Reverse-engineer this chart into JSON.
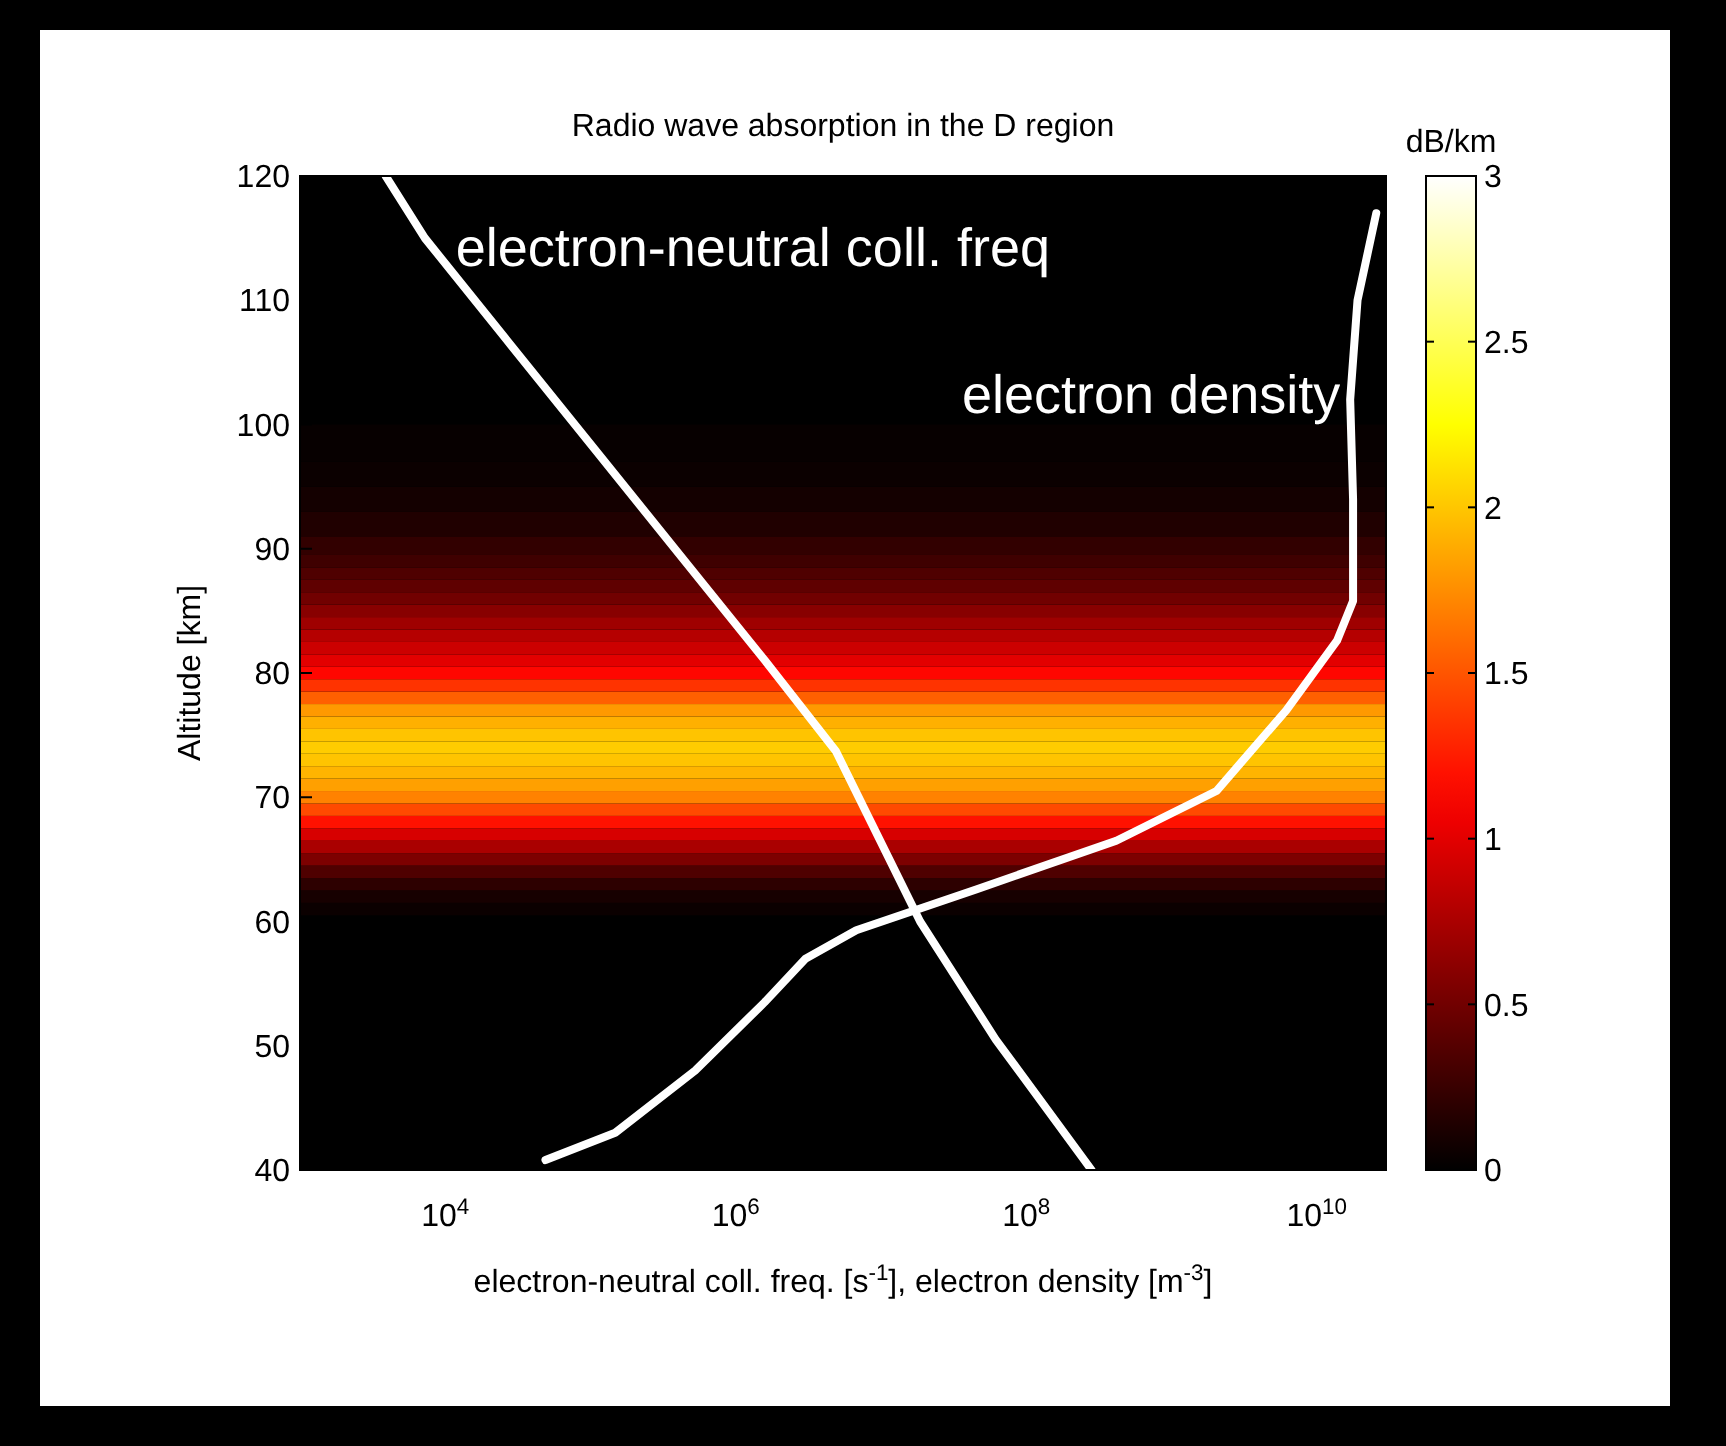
{
  "chart_data": {
    "type": "line",
    "title": "Radio wave absorption in the D region",
    "xlabel": "electron-neutral coll. freq. [s$^{-1}$], electron density [m$^{-3}$]",
    "ylabel": "Altitude [km]",
    "clabel": "dB/km",
    "log": "x",
    "grid": false,
    "legend": false,
    "marker": "none",
    "line_style": "solid",
    "xlim": [
      1000,
      30000000000
    ],
    "xticks": [
      {
        "value": 10000,
        "label": "10$^{4}$"
      },
      {
        "value": 1000000,
        "label": "10$^{6}$"
      },
      {
        "value": 100000000,
        "label": "10$^{8}$"
      },
      {
        "value": 10000000000,
        "label": "10$^{10}$"
      }
    ],
    "ylim": [
      40,
      120
    ],
    "yticks": [
      40,
      50,
      60,
      70,
      80,
      90,
      100,
      110,
      120
    ],
    "clim": [
      0,
      3
    ],
    "cticks": [
      0,
      0.5,
      1,
      1.5,
      2,
      2.5,
      3
    ],
    "bands": [
      {
        "axis": "y",
        "from": 60.5,
        "to": 61.5,
        "color": "#0b0000"
      },
      {
        "axis": "y",
        "from": 61.5,
        "to": 62.5,
        "color": "#170000"
      },
      {
        "axis": "y",
        "from": 62.5,
        "to": 63.5,
        "color": "#2d0000"
      },
      {
        "axis": "y",
        "from": 63.5,
        "to": 64.5,
        "color": "#4f0000"
      },
      {
        "axis": "y",
        "from": 64.5,
        "to": 65.5,
        "color": "#7d0000"
      },
      {
        "axis": "y",
        "from": 65.5,
        "to": 66.5,
        "color": "#aa0000"
      },
      {
        "axis": "y",
        "from": 66.5,
        "to": 67.5,
        "color": "#d70000"
      },
      {
        "axis": "y",
        "from": 67.5,
        "to": 68.5,
        "color": "#ff1100"
      },
      {
        "axis": "y",
        "from": 68.5,
        "to": 69.5,
        "color": "#ff4a00"
      },
      {
        "axis": "y",
        "from": 69.5,
        "to": 70.5,
        "color": "#ff8200"
      },
      {
        "axis": "y",
        "from": 70.5,
        "to": 71.5,
        "color": "#ffa000"
      },
      {
        "axis": "y",
        "from": 71.5,
        "to": 72.5,
        "color": "#ffb400"
      },
      {
        "axis": "y",
        "from": 72.5,
        "to": 73.5,
        "color": "#ffc400"
      },
      {
        "axis": "y",
        "from": 73.5,
        "to": 74.5,
        "color": "#ffcc00"
      },
      {
        "axis": "y",
        "from": 74.5,
        "to": 75.5,
        "color": "#ffc400"
      },
      {
        "axis": "y",
        "from": 75.5,
        "to": 76.5,
        "color": "#ffb000"
      },
      {
        "axis": "y",
        "from": 76.5,
        "to": 77.5,
        "color": "#ff9900"
      },
      {
        "axis": "y",
        "from": 77.5,
        "to": 78.5,
        "color": "#ff6000"
      },
      {
        "axis": "y",
        "from": 78.5,
        "to": 79.5,
        "color": "#ff3300"
      },
      {
        "axis": "y",
        "from": 79.5,
        "to": 80.5,
        "color": "#ff0600"
      },
      {
        "axis": "y",
        "from": 80.5,
        "to": 81.5,
        "color": "#e30000"
      },
      {
        "axis": "y",
        "from": 81.5,
        "to": 82.5,
        "color": "#cc0000"
      },
      {
        "axis": "y",
        "from": 82.5,
        "to": 83.5,
        "color": "#b50000"
      },
      {
        "axis": "y",
        "from": 83.5,
        "to": 84.5,
        "color": "#9f0000"
      },
      {
        "axis": "y",
        "from": 84.5,
        "to": 85.5,
        "color": "#880000"
      },
      {
        "axis": "y",
        "from": 85.5,
        "to": 86.5,
        "color": "#710000"
      },
      {
        "axis": "y",
        "from": 86.5,
        "to": 87.5,
        "color": "#5f0000"
      },
      {
        "axis": "y",
        "from": 87.5,
        "to": 88.5,
        "color": "#4f0000"
      },
      {
        "axis": "y",
        "from": 88.5,
        "to": 89.5,
        "color": "#3f0000"
      },
      {
        "axis": "y",
        "from": 89.5,
        "to": 91,
        "color": "#320000"
      },
      {
        "axis": "y",
        "from": 91,
        "to": 93,
        "color": "#200000"
      },
      {
        "axis": "y",
        "from": 93,
        "to": 95,
        "color": "#140000"
      },
      {
        "axis": "y",
        "from": 95,
        "to": 97,
        "color": "#0b0000"
      },
      {
        "axis": "y",
        "from": 97,
        "to": 100,
        "color": "#070000"
      }
    ],
    "series": [
      {
        "name": "electron-neutral coll. freq",
        "color": "#ffffff",
        "x": [
          3890,
          7240,
          25700,
          107000,
          447000,
          1590000,
          4900000,
          18600000,
          61700000,
          282000000
        ],
        "values": [
          120,
          115,
          107,
          98,
          89,
          81,
          73.7,
          60,
          50.5,
          40
        ]
      },
      {
        "name": "electron density",
        "color": "#ffffff",
        "x": [
          49000,
          148000,
          525000,
          1580000,
          3020000,
          6760000,
          45700000,
          417000000,
          2040000000,
          6170000000,
          13800000000,
          17800000000,
          17800000000,
          17000000000,
          19100000000,
          25700000000
        ],
        "values": [
          40.8,
          43,
          48,
          53.5,
          57,
          59.3,
          62.6,
          66.5,
          70.5,
          77,
          82.6,
          85.8,
          94,
          102,
          110,
          117
        ]
      }
    ]
  }
}
